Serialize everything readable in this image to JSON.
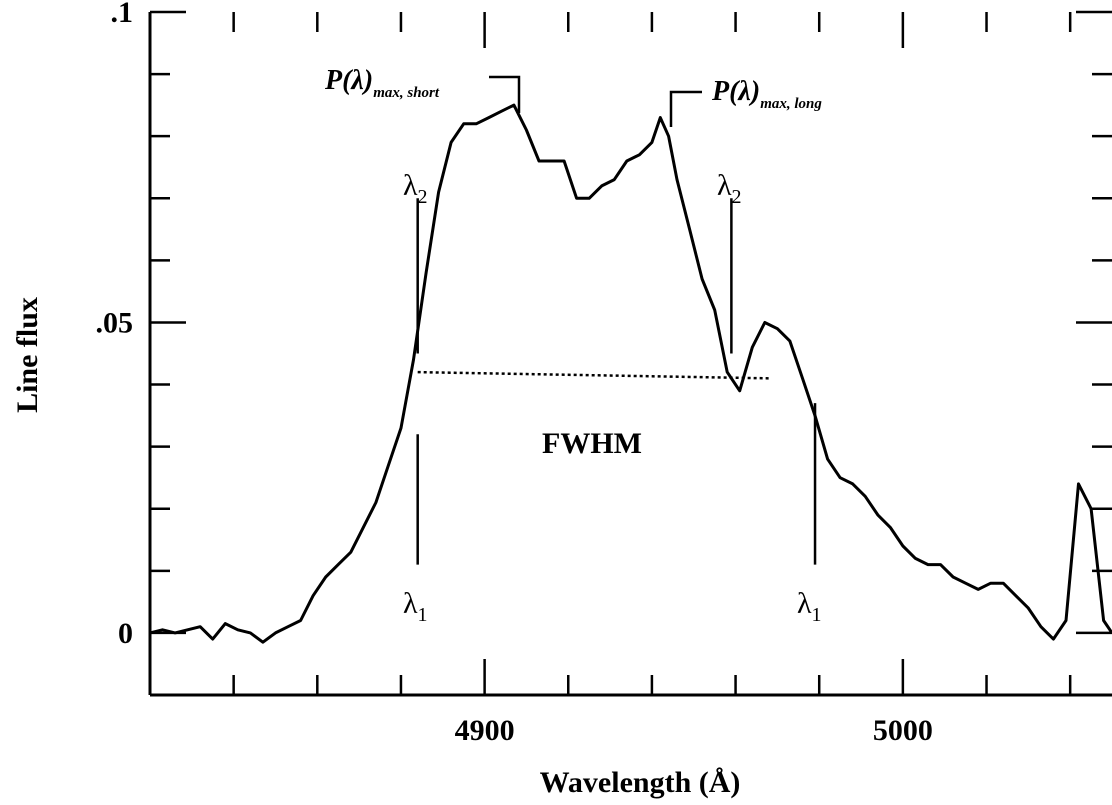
{
  "chart_data": {
    "type": "line",
    "title": "",
    "xlabel": "Wavelength (Å)",
    "ylabel": "Line flux",
    "xlim": [
      4820,
      5050
    ],
    "ylim": [
      -0.01,
      0.1
    ],
    "x_ticks": [
      {
        "value": 4900,
        "label": "4900"
      },
      {
        "value": 5000,
        "label": "5000"
      }
    ],
    "y_ticks": [
      {
        "value": 0,
        "label": "0"
      },
      {
        "value": 0.05,
        "label": ".05"
      },
      {
        "value": 0.1,
        "label": ".1"
      }
    ],
    "x_minor_step": 20,
    "y_minor_step": 0.01,
    "grid": false,
    "series": [
      {
        "x": [
          4820,
          4823,
          4826,
          4829,
          4832,
          4835,
          4838,
          4841,
          4844,
          4847,
          4850,
          4853,
          4856,
          4859,
          4862,
          4865,
          4868,
          4871,
          4874,
          4877,
          4880,
          4883,
          4886,
          4889,
          4892,
          4895,
          4898,
          4901,
          4904,
          4907,
          4910,
          4913,
          4916,
          4919,
          4922,
          4925,
          4928,
          4931,
          4934,
          4937,
          4940,
          4942,
          4944,
          4946,
          4949,
          4952,
          4955,
          4958,
          4961,
          4964,
          4967,
          4970,
          4973,
          4976,
          4979,
          4982,
          4985,
          4988,
          4991,
          4994,
          4997,
          5000,
          5003,
          5006,
          5009,
          5012,
          5015,
          5018,
          5021,
          5024,
          5027,
          5030,
          5033,
          5036,
          5039,
          5042,
          5045,
          5048,
          5050
        ],
        "y": [
          0.0,
          0.0005,
          0.0,
          0.0005,
          0.001,
          -0.001,
          0.0015,
          0.0005,
          0.0,
          -0.0015,
          0.0,
          0.001,
          0.002,
          0.006,
          0.009,
          0.011,
          0.013,
          0.017,
          0.021,
          0.027,
          0.033,
          0.044,
          0.058,
          0.071,
          0.079,
          0.082,
          0.082,
          0.083,
          0.084,
          0.085,
          0.081,
          0.076,
          0.076,
          0.076,
          0.07,
          0.07,
          0.072,
          0.073,
          0.076,
          0.077,
          0.079,
          0.083,
          0.08,
          0.073,
          0.065,
          0.057,
          0.052,
          0.042,
          0.039,
          0.046,
          0.05,
          0.049,
          0.047,
          0.041,
          0.035,
          0.028,
          0.025,
          0.024,
          0.022,
          0.019,
          0.017,
          0.014,
          0.012,
          0.011,
          0.011,
          0.009,
          0.008,
          0.007,
          0.008,
          0.008,
          0.006,
          0.004,
          0.001,
          -0.001,
          0.002,
          0.024,
          0.02,
          0.002,
          0.0
        ]
      }
    ],
    "fwhm_line": {
      "x1": 4884,
      "y1": 0.042,
      "x2": 4968,
      "y2": 0.041
    },
    "markers": [
      {
        "x": 4884,
        "y_from": 0.045,
        "y_to": 0.07
      },
      {
        "x": 4884,
        "y_from": 0.011,
        "y_to": 0.032
      },
      {
        "x": 4959,
        "y_from": 0.045,
        "y_to": 0.07
      },
      {
        "x": 4979,
        "y_from": 0.011,
        "y_to": 0.037
      }
    ],
    "annotations": {
      "lambda_symbol": "λ",
      "lambda2_sub": "2",
      "lambda1_sub": "1",
      "fwhm_label": "FWHM",
      "peak_short_main": "P(λ)",
      "peak_short_sub": "max, short",
      "peak_long_main": "P(λ)",
      "peak_long_sub": "max, long"
    }
  }
}
